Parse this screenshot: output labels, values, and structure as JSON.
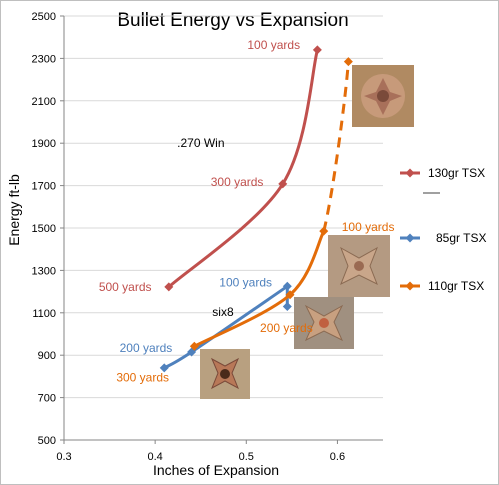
{
  "chart_data": {
    "type": "line",
    "title": "Bullet Energy vs Expansion",
    "xlabel": "Inches of Expansion",
    "ylabel": "Energy ft-lb",
    "xlim": [
      0.3,
      0.65
    ],
    "ylim": [
      500,
      2500
    ],
    "x_ticks": [
      "0.3",
      "0.4",
      "0.5",
      "0.6"
    ],
    "x_tick_values": [
      0.3,
      0.4,
      0.5,
      0.6
    ],
    "y_ticks": [
      "500",
      "700",
      "900",
      "1100",
      "1300",
      "1500",
      "1700",
      "1900",
      "2100",
      "2300",
      "2500"
    ],
    "y_tick_values": [
      500,
      700,
      900,
      1100,
      1300,
      1500,
      1700,
      1900,
      2100,
      2300,
      2500
    ],
    "grid": "horizontal",
    "legend_position": "right",
    "series": [
      {
        "name": "130gr TSX",
        "color": "#c0504d",
        "style": "solid",
        "points": [
          {
            "x": 0.415,
            "y": 1222
          },
          {
            "x": 0.54,
            "y": 1708
          },
          {
            "x": 0.578,
            "y": 2340
          }
        ]
      },
      {
        "name": "85gr TSX",
        "color": "#4f81bd",
        "style": "solid",
        "points": [
          {
            "x": 0.41,
            "y": 840
          },
          {
            "x": 0.44,
            "y": 915
          },
          {
            "x": 0.545,
            "y": 1225
          },
          {
            "x": 0.545,
            "y": 1130
          }
        ]
      },
      {
        "name": "110gr TSX",
        "color": "#e36c09",
        "style": "solid-then-dashed",
        "points": [
          {
            "x": 0.443,
            "y": 942
          },
          {
            "x": 0.548,
            "y": 1185
          },
          {
            "x": 0.585,
            "y": 1485
          },
          {
            "x": 0.612,
            "y": 2285
          }
        ]
      }
    ],
    "annotations": [
      {
        "text": "100 yards",
        "color": "#c0504d",
        "x": 0.578,
        "y": 2340
      },
      {
        "text": "300 yards",
        "color": "#c0504d",
        "x": 0.54,
        "y": 1708
      },
      {
        "text": "500 yards",
        "color": "#c0504d",
        "x": 0.415,
        "y": 1222
      },
      {
        "text": ".270 Win",
        "color": "#000000",
        "x": 0.49,
        "y": 1900
      },
      {
        "text": "100 yards",
        "color": "#4f81bd",
        "x": 0.545,
        "y": 1225
      },
      {
        "text": "200 yards",
        "color": "#4f81bd",
        "x": 0.44,
        "y": 915
      },
      {
        "text": "six8",
        "color": "#000000",
        "x": 0.5,
        "y": 1100
      },
      {
        "text": "100 yards",
        "color": "#e36c09",
        "x": 0.585,
        "y": 1485
      },
      {
        "text": "200 yards",
        "color": "#e36c09",
        "x": 0.548,
        "y": 1185
      },
      {
        "text": "300 yards",
        "color": "#e36c09",
        "x": 0.443,
        "y": 942
      }
    ]
  }
}
